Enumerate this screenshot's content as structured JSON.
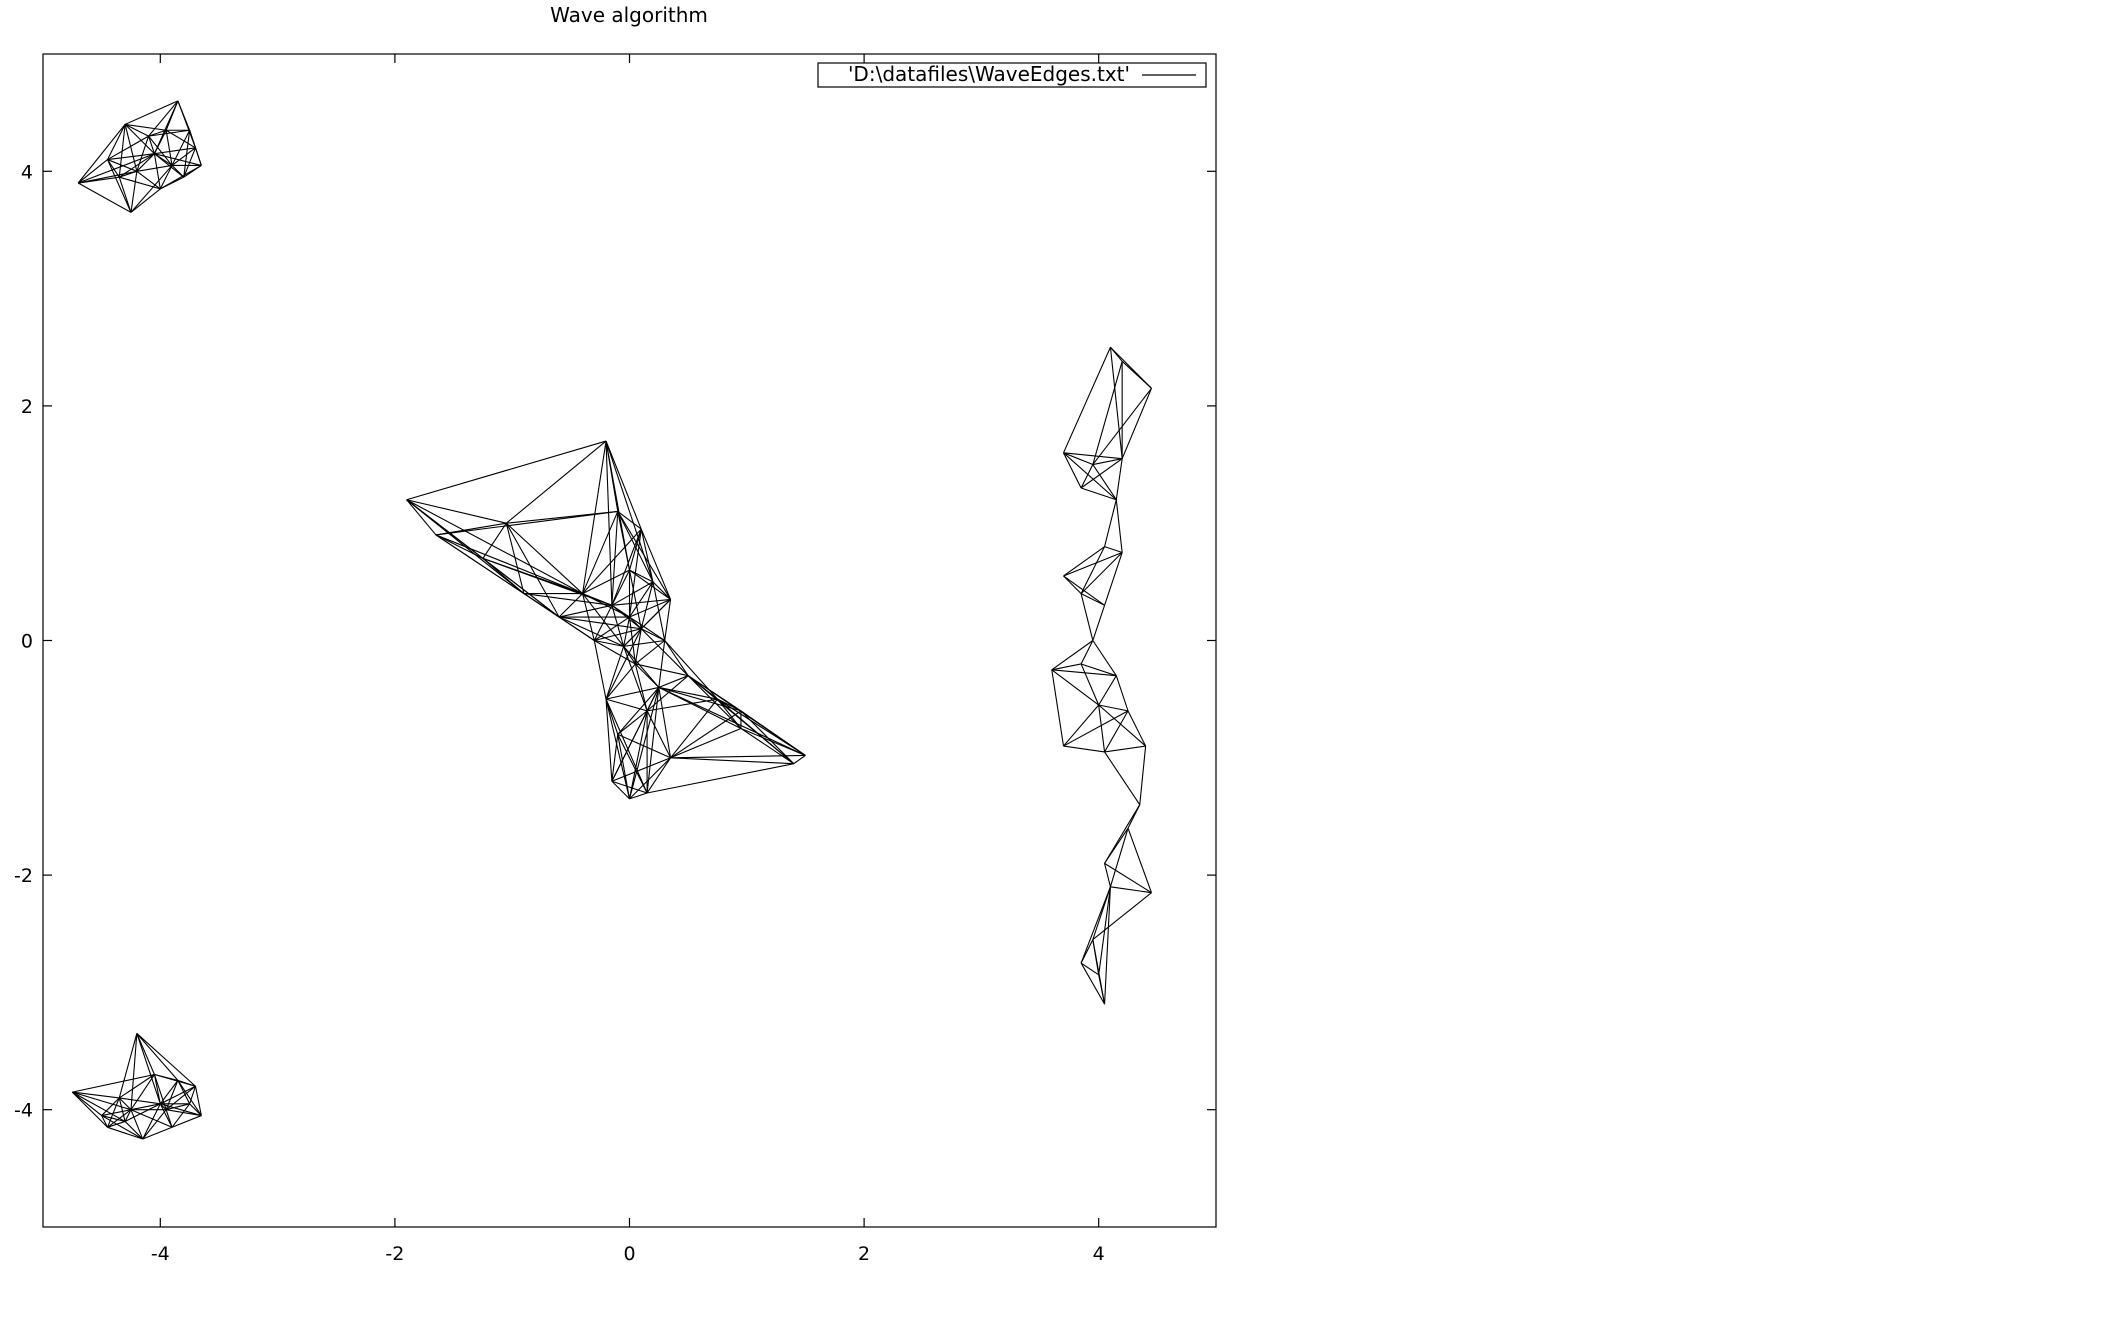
{
  "chart_data": {
    "type": "line",
    "title": "Wave algorithm",
    "xlabel": "",
    "ylabel": "",
    "xlim": [
      -5,
      5
    ],
    "ylim": [
      -5,
      5
    ],
    "xticks": [
      -4,
      -2,
      0,
      2,
      4
    ],
    "yticks": [
      -4,
      -2,
      0,
      2,
      4
    ],
    "xtick_labels": [
      "-4",
      "-2",
      "0",
      "2",
      "4"
    ],
    "ytick_labels": [
      "-4",
      "-2",
      "0",
      "2",
      "4"
    ],
    "grid": false,
    "legend_position": "top-right",
    "series": [
      {
        "name": "'D:\\datafiles\\WaveEdges.txt'",
        "color": "#000000",
        "clusters": [
          {
            "id": "top-left",
            "nodes": [
              [
                -4.7,
                3.9
              ],
              [
                -4.45,
                4.1
              ],
              [
                -4.3,
                4.4
              ],
              [
                -4.25,
                3.65
              ],
              [
                -4.1,
                4.3
              ],
              [
                -4.0,
                3.85
              ],
              [
                -3.9,
                4.05
              ],
              [
                -3.85,
                4.6
              ],
              [
                -3.8,
                3.95
              ],
              [
                -3.7,
                4.2
              ],
              [
                -3.65,
                4.05
              ],
              [
                -4.2,
                4.0
              ],
              [
                -4.05,
                4.15
              ],
              [
                -3.95,
                4.35
              ],
              [
                -4.35,
                3.95
              ],
              [
                -3.75,
                4.35
              ]
            ]
          },
          {
            "id": "bottom-left",
            "nodes": [
              [
                -4.75,
                -3.85
              ],
              [
                -4.5,
                -4.05
              ],
              [
                -4.45,
                -4.15
              ],
              [
                -4.35,
                -3.9
              ],
              [
                -4.2,
                -3.35
              ],
              [
                -4.15,
                -4.25
              ],
              [
                -4.0,
                -3.95
              ],
              [
                -3.9,
                -4.15
              ],
              [
                -3.7,
                -3.8
              ],
              [
                -3.65,
                -4.05
              ],
              [
                -3.85,
                -3.75
              ],
              [
                -4.3,
                -4.1
              ],
              [
                -4.05,
                -3.7
              ],
              [
                -3.95,
                -4.0
              ],
              [
                -4.25,
                -4.0
              ],
              [
                -3.75,
                -3.95
              ]
            ]
          },
          {
            "id": "center",
            "nodes": [
              [
                -1.9,
                1.2
              ],
              [
                -1.65,
                0.9
              ],
              [
                -1.25,
                0.7
              ],
              [
                -1.05,
                1.0
              ],
              [
                -0.9,
                0.4
              ],
              [
                -0.6,
                0.2
              ],
              [
                -0.4,
                0.4
              ],
              [
                -0.2,
                1.7
              ],
              [
                -0.1,
                1.1
              ],
              [
                0.1,
                0.95
              ],
              [
                0.35,
                0.35
              ],
              [
                0.3,
                0.0
              ],
              [
                0.5,
                -0.3
              ],
              [
                0.75,
                -0.5
              ],
              [
                0.95,
                -0.6
              ],
              [
                0.95,
                -0.75
              ],
              [
                1.4,
                -1.05
              ],
              [
                1.5,
                -0.98
              ],
              [
                0.0,
                -1.35
              ],
              [
                -0.15,
                -1.2
              ],
              [
                0.15,
                -1.3
              ],
              [
                0.35,
                -1.0
              ],
              [
                -0.2,
                -0.5
              ],
              [
                -0.3,
                0.0
              ],
              [
                0.0,
                0.2
              ],
              [
                0.05,
                -0.2
              ],
              [
                0.15,
                -0.6
              ],
              [
                -0.1,
                -0.8
              ],
              [
                0.2,
                0.5
              ],
              [
                0.0,
                0.6
              ],
              [
                -0.15,
                0.3
              ],
              [
                0.25,
                -0.4
              ],
              [
                -0.05,
                -0.05
              ],
              [
                0.1,
                0.1
              ]
            ]
          },
          {
            "id": "right",
            "nodes": [
              [
                4.45,
                2.15
              ],
              [
                4.2,
                2.38
              ],
              [
                4.1,
                2.5
              ],
              [
                3.7,
                1.6
              ],
              [
                3.95,
                1.5
              ],
              [
                4.2,
                1.55
              ],
              [
                3.85,
                1.3
              ],
              [
                4.15,
                1.2
              ],
              [
                4.2,
                0.75
              ],
              [
                4.05,
                0.8
              ],
              [
                3.7,
                0.55
              ],
              [
                3.85,
                0.4
              ],
              [
                4.05,
                0.3
              ],
              [
                3.95,
                0.0
              ],
              [
                3.6,
                -0.25
              ],
              [
                3.85,
                -0.2
              ],
              [
                4.15,
                -0.3
              ],
              [
                4.0,
                -0.55
              ],
              [
                4.25,
                -0.6
              ],
              [
                3.7,
                -0.9
              ],
              [
                4.05,
                -0.95
              ],
              [
                4.4,
                -0.9
              ],
              [
                4.35,
                -1.4
              ],
              [
                4.25,
                -1.6
              ],
              [
                4.05,
                -1.9
              ],
              [
                4.1,
                -2.1
              ],
              [
                4.45,
                -2.15
              ],
              [
                3.95,
                -2.55
              ],
              [
                3.85,
                -2.75
              ],
              [
                4.0,
                -2.85
              ],
              [
                4.05,
                -3.1
              ]
            ]
          }
        ]
      }
    ]
  }
}
